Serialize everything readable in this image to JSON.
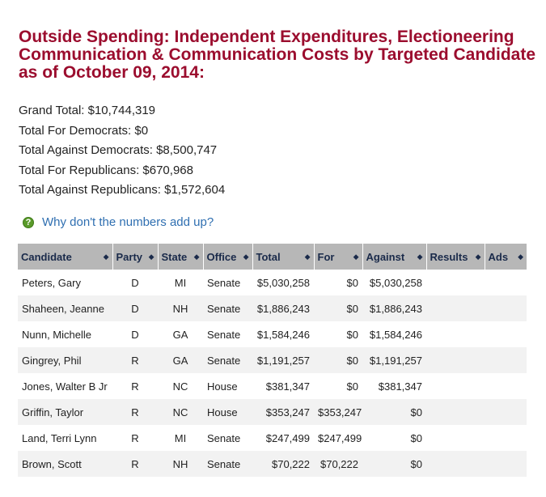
{
  "page": {
    "title": "Outside Spending: Independent Expenditures, Electioneering Communication & Communication Costs by Targeted Candidate as of October 09, 2014:"
  },
  "totals": [
    "Grand Total: $10,744,319",
    "Total For Democrats: $0",
    "Total Against Democrats: $8,500,747",
    "Total For Republicans: $670,968",
    "Total Against Republicans: $1,572,604"
  ],
  "help": {
    "icon": "question-icon",
    "link": "Why don't the numbers add up?"
  },
  "table": {
    "columns": [
      "Candidate",
      "Party",
      "State",
      "Office",
      "Total",
      "For",
      "Against",
      "Results",
      "Ads"
    ],
    "sort_glyph": "◆",
    "rows": [
      {
        "candidate": "Peters, Gary",
        "party": "D",
        "state": "MI",
        "office": "Senate",
        "total": "$5,030,258",
        "for": "$0",
        "against": "$5,030,258",
        "results": "",
        "ads": ""
      },
      {
        "candidate": "Shaheen, Jeanne",
        "party": "D",
        "state": "NH",
        "office": "Senate",
        "total": "$1,886,243",
        "for": "$0",
        "against": "$1,886,243",
        "results": "",
        "ads": ""
      },
      {
        "candidate": "Nunn, Michelle",
        "party": "D",
        "state": "GA",
        "office": "Senate",
        "total": "$1,584,246",
        "for": "$0",
        "against": "$1,584,246",
        "results": "",
        "ads": ""
      },
      {
        "candidate": "Gingrey, Phil",
        "party": "R",
        "state": "GA",
        "office": "Senate",
        "total": "$1,191,257",
        "for": "$0",
        "against": "$1,191,257",
        "results": "",
        "ads": ""
      },
      {
        "candidate": "Jones, Walter B Jr",
        "party": "R",
        "state": "NC",
        "office": "House",
        "total": "$381,347",
        "for": "$0",
        "against": "$381,347",
        "results": "",
        "ads": ""
      },
      {
        "candidate": "Griffin, Taylor",
        "party": "R",
        "state": "NC",
        "office": "House",
        "total": "$353,247",
        "for": "$353,247",
        "against": "$0",
        "results": "",
        "ads": ""
      },
      {
        "candidate": "Land, Terri Lynn",
        "party": "R",
        "state": "MI",
        "office": "Senate",
        "total": "$247,499",
        "for": "$247,499",
        "against": "$0",
        "results": "",
        "ads": ""
      },
      {
        "candidate": "Brown, Scott",
        "party": "R",
        "state": "NH",
        "office": "Senate",
        "total": "$70,222",
        "for": "$70,222",
        "against": "$0",
        "results": "",
        "ads": ""
      }
    ]
  }
}
